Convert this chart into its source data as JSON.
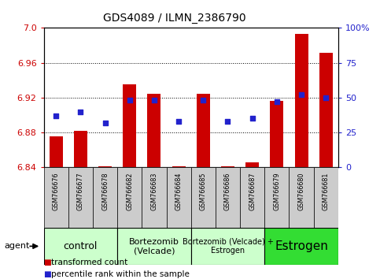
{
  "title": "GDS4089 / ILMN_2386790",
  "samples": [
    "GSM766676",
    "GSM766677",
    "GSM766678",
    "GSM766682",
    "GSM766683",
    "GSM766684",
    "GSM766685",
    "GSM766686",
    "GSM766687",
    "GSM766679",
    "GSM766680",
    "GSM766681"
  ],
  "transformed_count": [
    6.876,
    6.882,
    6.841,
    6.935,
    6.924,
    6.841,
    6.924,
    6.841,
    6.846,
    6.916,
    6.993,
    6.971
  ],
  "percentile_rank": [
    37,
    40,
    32,
    48,
    48,
    33,
    48,
    33,
    35,
    47,
    52,
    50
  ],
  "ylim_left": [
    6.84,
    7.0
  ],
  "ylim_right": [
    0,
    100
  ],
  "yticks_left": [
    6.84,
    6.88,
    6.92,
    6.96,
    7.0
  ],
  "yticks_right": [
    0,
    25,
    50,
    75,
    100
  ],
  "bar_color": "#cc0000",
  "dot_color": "#2222cc",
  "bar_bottom": 6.84,
  "groups": [
    {
      "label": "control",
      "start": 0,
      "end": 3,
      "color": "#ccffcc"
    },
    {
      "label": "Bortezomib\n(Velcade)",
      "start": 3,
      "end": 6,
      "color": "#ccffcc"
    },
    {
      "label": "Bortezomib (Velcade) +\nEstrogen",
      "start": 6,
      "end": 9,
      "color": "#ccffcc"
    },
    {
      "label": "Estrogen",
      "start": 9,
      "end": 12,
      "color": "#33dd33"
    }
  ],
  "legend_bar_label": "transformed count",
  "legend_dot_label": "percentile rank within the sample",
  "agent_label": "agent",
  "tick_label_color_left": "#cc0000",
  "tick_label_color_right": "#2222cc",
  "sample_box_color": "#cccccc",
  "plot_bg": "#ffffff"
}
